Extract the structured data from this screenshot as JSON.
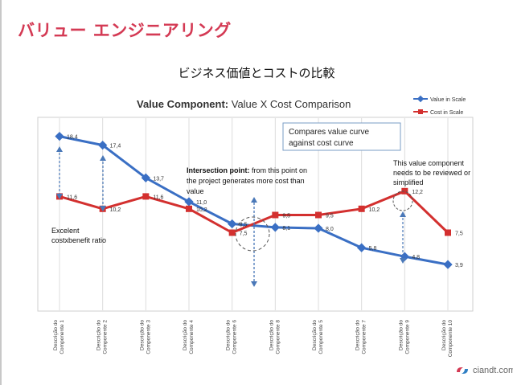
{
  "slide": {
    "title": "バリュー エンジニアリング",
    "subtitle": "ビジネス価値とコストの比較",
    "brand": "ciandt.com"
  },
  "colors": {
    "title": "#d43a54",
    "value_series": "#3a6fc4",
    "cost_series": "#d3302f",
    "annotation": "#4a78b8"
  },
  "chart_data": {
    "type": "line",
    "title_bold": "Value Component:",
    "title_rest": " Value X Cost Comparison",
    "categories": [
      "Descrição do Componente 1",
      "Descrição do Componente 2",
      "Descrição do Componente 3",
      "Descrição do Componente 4",
      "Descrição do Componente 6",
      "Descrição do Componente 8",
      "Descrição do Componente 5",
      "Descrição do Componente 7",
      "Descrição do Componente 9",
      "Descrição do Componente 10"
    ],
    "series": [
      {
        "name": "Value in Scale",
        "marker": "diamond",
        "values": [
          18.4,
          17.4,
          13.7,
          11.0,
          8.5,
          8.1,
          8.0,
          5.8,
          4.8,
          3.9
        ],
        "labels": [
          "18,4",
          "17,4",
          "13,7",
          "11,0",
          "8,5",
          "8,1",
          "8,0",
          "5,8",
          "4,8",
          "3,9"
        ]
      },
      {
        "name": "Cost in Scale",
        "marker": "square",
        "values": [
          11.6,
          10.2,
          11.6,
          10.2,
          7.5,
          9.5,
          9.5,
          10.2,
          12.2,
          7.5
        ],
        "labels": [
          "11,6",
          "10,2",
          "11,6",
          "10,2",
          "7,5",
          "9,5",
          "9,5",
          "10,2",
          "12,2",
          "7,5"
        ]
      }
    ],
    "ylim": [
      0,
      20
    ],
    "grid": "vertical",
    "legend": "top-right",
    "annotations": {
      "compare_box": [
        "Compares value curve",
        "against  cost curve"
      ],
      "intersection_bold": "Intersection point:",
      "intersection_lines": [
        " from this point on",
        "the project generates more cost than",
        "value"
      ],
      "review_note": [
        "This value component",
        "needs to be reviewed or",
        "simplified"
      ],
      "costbenefit": [
        "Excelent",
        "costxbenefit ratio"
      ]
    }
  }
}
